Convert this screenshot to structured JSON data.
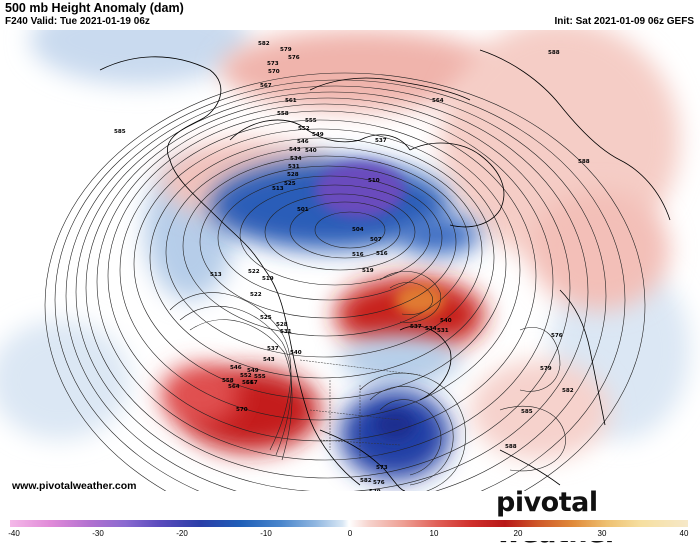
{
  "header": {
    "title": "500 mb Height Anomaly (dam)",
    "valid": "F240 Valid: Tue 2021-01-19 06z",
    "init": "Init: Sat 2021-01-09 06z GEFS"
  },
  "map": {
    "contour_labels": [
      "582",
      "579",
      "576",
      "573",
      "570",
      "567",
      "564",
      "561",
      "558",
      "555",
      "552",
      "549",
      "546",
      "543",
      "540",
      "537",
      "534",
      "531",
      "528",
      "525",
      "522",
      "519",
      "516",
      "513",
      "510",
      "507",
      "504",
      "501",
      "585",
      "588",
      "513",
      "516",
      "519",
      "522",
      "525",
      "528",
      "531",
      "537",
      "540",
      "543",
      "546",
      "549",
      "552",
      "555",
      "558",
      "561",
      "564",
      "567",
      "570",
      "573",
      "576",
      "579",
      "582",
      "585",
      "588",
      "576",
      "579",
      "582",
      "540",
      "537",
      "534",
      "531",
      "588",
      "576",
      "585",
      "582",
      "579",
      "576",
      "573",
      "570",
      "567",
      "564",
      "561",
      "558",
      "555",
      "552",
      "549",
      "546",
      "543",
      "540",
      "537",
      "534",
      "531",
      "528"
    ],
    "colors": {
      "positive_anomaly": "#d0302c",
      "negative_anomaly": "#2b3ea8",
      "strong_negative": "#5b4bbd",
      "strong_positive": "#e08a3a"
    }
  },
  "footer": {
    "url": "www.pivotalweather.com",
    "logo": "pivotal weather"
  },
  "colorbar": {
    "ticks": [
      "-40",
      "-30",
      "-20",
      "-10",
      "0",
      "10",
      "20",
      "30",
      "40"
    ]
  }
}
